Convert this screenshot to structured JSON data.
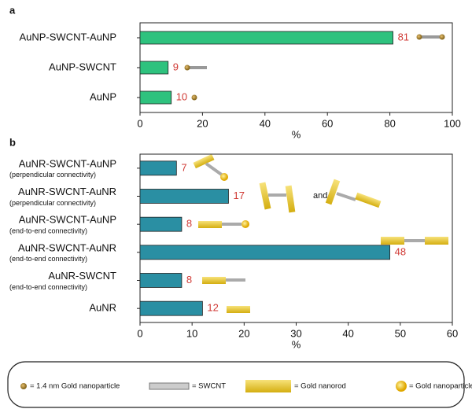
{
  "chart_data": [
    {
      "type": "bar",
      "orientation": "horizontal",
      "panel_label": "a",
      "categories": [
        "AuNP-SWCNT-AuNP",
        "AuNP-SWCNT",
        "AuNP"
      ],
      "values": [
        81,
        9,
        10
      ],
      "color": "#2ec27e",
      "label_color": "#d03a35",
      "xlim": [
        0,
        100
      ],
      "xticks": [
        0,
        20,
        40,
        60,
        80,
        100
      ],
      "xlabel": "%"
    },
    {
      "type": "bar",
      "orientation": "horizontal",
      "panel_label": "b",
      "categories": [
        "AuNR-SWCNT-AuNP",
        "AuNR-SWCNT-AuNR",
        "AuNR-SWCNT-AuNP",
        "AuNR-SWCNT-AuNR",
        "AuNR-SWCNT",
        "AuNR"
      ],
      "sublabels": [
        "(perpendicular connectivity)",
        "(perpendicular connectivity)",
        "(end-to-end connectivity)",
        "(end-to-end connectivity)",
        "(end-to-end connectivity)",
        null
      ],
      "values": [
        7,
        17,
        8,
        48,
        8,
        12
      ],
      "color": "#2a8fa3",
      "label_color": "#d03a35",
      "xlim": [
        0,
        60
      ],
      "xticks": [
        0,
        10,
        20,
        30,
        40,
        50,
        60
      ],
      "xlabel": "%",
      "annotation": "and"
    }
  ],
  "legend": [
    "= 1.4 nm Gold nanoparticle",
    "= SWCNT",
    "= Gold nanorod",
    "= Gold nanoparticle"
  ]
}
